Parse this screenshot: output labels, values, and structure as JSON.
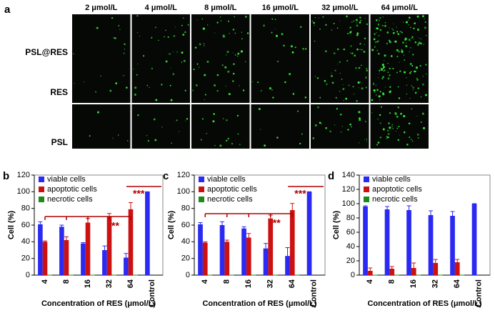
{
  "panel_a": {
    "label": "a",
    "columns": [
      "2 μmol/L",
      "4 μmol/L",
      "8 μmol/L",
      "16 μmol/L",
      "32 μmol/L",
      "64 μmol/L"
    ],
    "rows": [
      "PSL@RES",
      "RES",
      "PSL"
    ]
  },
  "chart_data": [
    {
      "type": "bar",
      "panel_label": "b",
      "y_label": "Cell (%)",
      "x_label": "Concentration of RES (μmol/L)",
      "categories": [
        "4",
        "8",
        "16",
        "32",
        "64",
        "Control"
      ],
      "ylim": [
        0,
        120
      ],
      "yticks": [
        0,
        20,
        40,
        60,
        80,
        100,
        120
      ],
      "series": [
        {
          "name": "viable cells",
          "color": "#2a2af2",
          "values": [
            61,
            58,
            38,
            30,
            21,
            100
          ],
          "errors": [
            3,
            2,
            1,
            5,
            5,
            0
          ]
        },
        {
          "name": "apoptotic cells",
          "color": "#cc1111",
          "values": [
            40,
            42,
            63,
            70,
            79,
            null
          ],
          "errors": [
            1,
            4,
            5,
            4,
            8,
            null
          ]
        },
        {
          "name": "necrotic cells",
          "color": "#1a8a1a",
          "values": [
            0,
            0,
            0,
            0,
            0,
            null
          ],
          "errors": [
            0,
            0,
            0,
            0,
            0,
            null
          ]
        }
      ],
      "annotations": [
        "**",
        "***"
      ]
    },
    {
      "type": "bar",
      "panel_label": "c",
      "y_label": "Cell (%)",
      "x_label": "Concentration of RES (μmol/L)",
      "categories": [
        "4",
        "8",
        "16",
        "32",
        "64",
        "Control"
      ],
      "ylim": [
        0,
        120
      ],
      "yticks": [
        0,
        20,
        40,
        60,
        80,
        100,
        120
      ],
      "series": [
        {
          "name": "viable cells",
          "color": "#2a2af2",
          "values": [
            61,
            60,
            56,
            32,
            23,
            100
          ],
          "errors": [
            2,
            4,
            2,
            6,
            10,
            0
          ]
        },
        {
          "name": "apoptotic cells",
          "color": "#cc1111",
          "values": [
            39,
            40,
            45,
            68,
            78,
            null
          ],
          "errors": [
            1,
            2,
            5,
            4,
            8,
            null
          ]
        },
        {
          "name": "necrotic cells",
          "color": "#1a8a1a",
          "values": [
            0,
            0,
            0,
            0,
            0,
            null
          ],
          "errors": [
            0,
            0,
            0,
            0,
            0,
            null
          ]
        }
      ],
      "annotations": [
        "**",
        "***"
      ]
    },
    {
      "type": "bar",
      "panel_label": "d",
      "y_label": "Cell (%)",
      "x_label": "Concentration of RES (μmol/L)",
      "categories": [
        "4",
        "8",
        "16",
        "32",
        "64",
        "Control"
      ],
      "ylim": [
        0,
        140
      ],
      "yticks": [
        0,
        20,
        40,
        60,
        80,
        100,
        120,
        140
      ],
      "series": [
        {
          "name": "viable cells",
          "color": "#2a2af2",
          "values": [
            96,
            92,
            91,
            84,
            83,
            100
          ],
          "errors": [
            1,
            4,
            6,
            6,
            6,
            0
          ]
        },
        {
          "name": "apoptotic cells",
          "color": "#cc1111",
          "values": [
            6,
            9,
            10,
            17,
            18,
            null
          ],
          "errors": [
            4,
            3,
            7,
            5,
            4,
            null
          ]
        },
        {
          "name": "necrotic cells",
          "color": "#1a8a1a",
          "values": [
            0,
            0,
            0,
            0,
            0,
            null
          ],
          "errors": [
            0,
            0,
            0,
            0,
            0,
            null
          ]
        }
      ],
      "annotations": []
    }
  ]
}
